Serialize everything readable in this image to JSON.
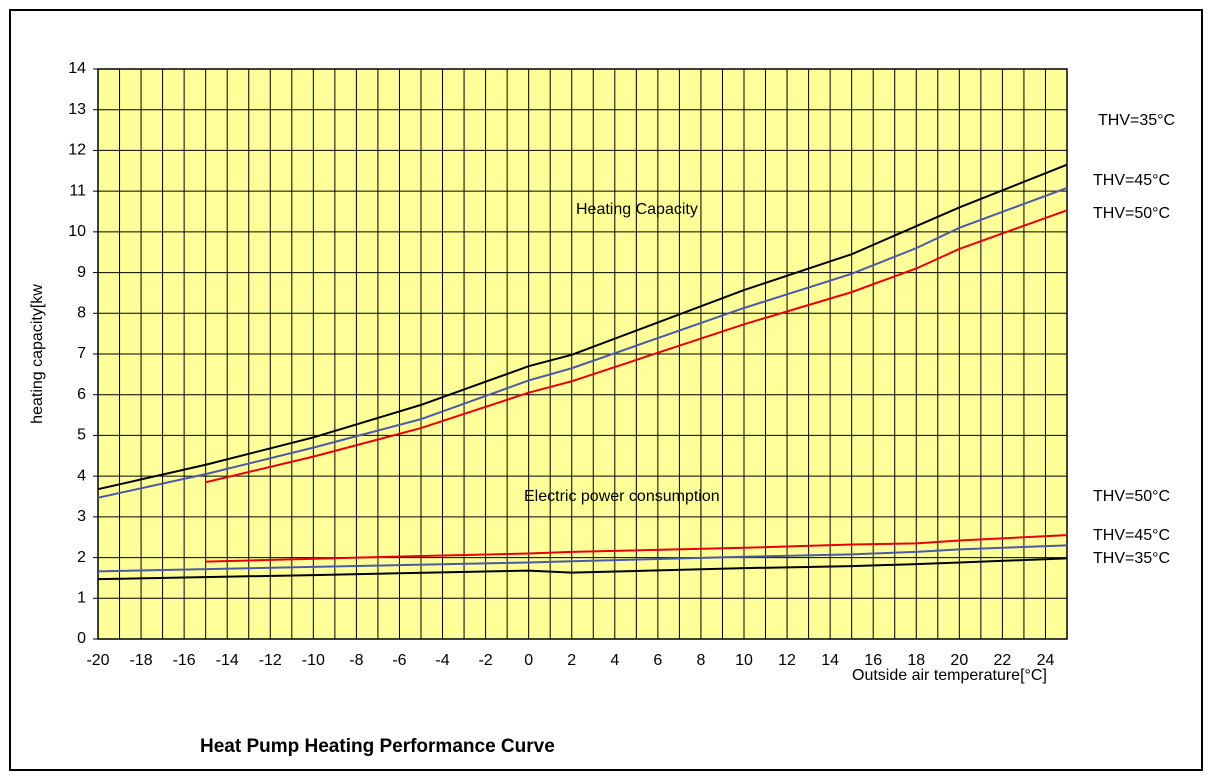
{
  "chart_data": {
    "type": "line",
    "title": "Heat Pump Heating Performance Curve",
    "y_label": "heating capacity[kw",
    "x_label": "Outside air temperature[°C]",
    "annotations": [
      "Heating Capacity",
      "Electric power consumption"
    ],
    "xlim": [
      -20,
      25
    ],
    "xticks": [
      -20,
      -18,
      -16,
      -14,
      -12,
      -10,
      -8,
      -6,
      -4,
      -2,
      0,
      2,
      4,
      6,
      8,
      10,
      12,
      14,
      16,
      18,
      20,
      22,
      24
    ],
    "xminor_ticks": [
      -19,
      -17,
      -15,
      -13,
      -11,
      -9,
      -7,
      -5,
      -3,
      -1,
      1,
      3,
      5,
      7,
      9,
      11,
      13,
      15,
      17,
      19,
      21,
      23,
      25
    ],
    "ylim": [
      0,
      14
    ],
    "yticks": [
      0,
      1,
      2,
      3,
      4,
      5,
      6,
      7,
      8,
      9,
      10,
      11,
      12,
      13,
      14
    ],
    "grid": true,
    "background": "#ffff99",
    "series": [
      {
        "name": "THV=35°C",
        "color": "#000000",
        "x": [
          -20,
          -15,
          -10,
          -5,
          0,
          2,
          10,
          15,
          20,
          25
        ],
        "values": [
          3.68,
          4.28,
          4.95,
          5.75,
          6.7,
          6.98,
          8.57,
          9.45,
          10.6,
          11.65
        ]
      },
      {
        "name": "THV=45°C",
        "color": "#4b5aa6",
        "x": [
          -20,
          -15,
          -10,
          -5,
          0,
          2,
          10,
          15,
          18,
          20,
          25
        ],
        "values": [
          3.47,
          4.05,
          4.7,
          5.4,
          6.35,
          6.65,
          8.13,
          8.97,
          9.6,
          10.1,
          11.08
        ]
      },
      {
        "name": "THV=50°C",
        "color": "#e8000b",
        "x": [
          -15,
          -10,
          -5,
          0,
          2,
          10,
          15,
          18,
          20,
          25
        ],
        "values": [
          3.85,
          4.48,
          5.18,
          6.05,
          6.33,
          7.73,
          8.52,
          9.1,
          9.58,
          10.53
        ]
      },
      {
        "name": "THV=50°C",
        "color": "#e8000b",
        "x": [
          -15,
          -10,
          -5,
          0,
          2,
          10,
          15,
          18,
          20,
          25
        ],
        "values": [
          1.9,
          1.97,
          2.04,
          2.1,
          2.14,
          2.24,
          2.32,
          2.35,
          2.42,
          2.55
        ]
      },
      {
        "name": "THV=45°C",
        "color": "#4b5aa6",
        "x": [
          -20,
          -10,
          0,
          2,
          10,
          15,
          18,
          20,
          25
        ],
        "values": [
          1.66,
          1.77,
          1.88,
          1.91,
          2.02,
          2.08,
          2.14,
          2.2,
          2.3
        ]
      },
      {
        "name": "THV=35°C",
        "color": "#000000",
        "x": [
          -20,
          -10,
          0,
          2,
          10,
          15,
          18,
          20,
          25
        ],
        "values": [
          1.47,
          1.57,
          1.68,
          1.63,
          1.74,
          1.79,
          1.84,
          1.88,
          1.98
        ]
      }
    ]
  }
}
